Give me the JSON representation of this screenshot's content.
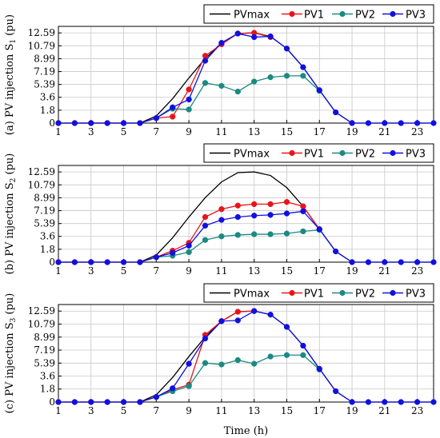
{
  "xlabel": "Time (h)",
  "chart_data": [
    {
      "type": "line",
      "ylabel_prefix": "(a) PV injection S",
      "ylabel_sub": "1",
      "ylabel_suffix": " (pu)",
      "x": [
        1,
        2,
        3,
        4,
        5,
        6,
        7,
        8,
        9,
        10,
        11,
        12,
        13,
        14,
        15,
        16,
        17,
        18,
        19,
        20,
        21,
        22,
        23,
        24
      ],
      "x_ticks": [
        1,
        3,
        5,
        7,
        9,
        11,
        13,
        15,
        17,
        19,
        21,
        23
      ],
      "y_ticks": [
        0,
        1.8,
        3.6,
        5.39,
        7.19,
        8.99,
        10.79,
        12.59
      ],
      "y_tick_labels": [
        "0",
        "1.8",
        "3.6",
        "5.39",
        "7.19",
        "8.99",
        "10.79",
        "12.59"
      ],
      "xlim": [
        1,
        24
      ],
      "ylim": [
        0,
        13.5
      ],
      "grid": true,
      "legend": "top",
      "series": [
        {
          "name": "PVmax",
          "color": "#000000",
          "marker": false,
          "values": [
            0,
            0,
            0,
            0,
            0,
            0,
            1.0,
            3.4,
            6.3,
            9.0,
            11.2,
            12.5,
            12.6,
            12.1,
            10.4,
            7.8,
            4.6,
            1.5,
            0,
            0,
            0,
            0,
            0,
            0
          ]
        },
        {
          "name": "PV1",
          "color": "#e8141a",
          "marker": true,
          "values": [
            0,
            0,
            0,
            0,
            0,
            0,
            0.7,
            0.9,
            4.7,
            9.4,
            11.0,
            12.5,
            12.6,
            12.0,
            null,
            null,
            null,
            null,
            null,
            null,
            null,
            null,
            null,
            null
          ]
        },
        {
          "name": "PV2",
          "color": "#1a8a82",
          "marker": true,
          "values": [
            null,
            null,
            null,
            null,
            null,
            null,
            0.7,
            2.0,
            1.9,
            5.6,
            5.2,
            4.4,
            5.8,
            6.4,
            6.6,
            6.6,
            4.5,
            null,
            null,
            null,
            null,
            null,
            null,
            null
          ]
        },
        {
          "name": "PV3",
          "color": "#1010e0",
          "marker": true,
          "values": [
            0,
            0,
            0,
            0,
            0,
            0,
            0.7,
            2.2,
            3.3,
            8.7,
            11.2,
            12.5,
            12.0,
            12.1,
            10.4,
            7.8,
            4.6,
            1.5,
            0,
            0,
            0,
            0,
            0,
            0
          ]
        }
      ]
    },
    {
      "type": "line",
      "ylabel_prefix": "(b) PV injection S",
      "ylabel_sub": "2",
      "ylabel_suffix": " (pu)",
      "x": [
        1,
        2,
        3,
        4,
        5,
        6,
        7,
        8,
        9,
        10,
        11,
        12,
        13,
        14,
        15,
        16,
        17,
        18,
        19,
        20,
        21,
        22,
        23,
        24
      ],
      "x_ticks": [
        1,
        3,
        5,
        7,
        9,
        11,
        13,
        15,
        17,
        19,
        21,
        23
      ],
      "y_ticks": [
        0,
        1.8,
        3.6,
        5.39,
        7.19,
        8.99,
        10.79,
        12.59
      ],
      "y_tick_labels": [
        "0",
        "1.8",
        "3.6",
        "5.39",
        "7.19",
        "8.99",
        "10.79",
        "12.59"
      ],
      "xlim": [
        1,
        24
      ],
      "ylim": [
        0,
        13.5
      ],
      "grid": true,
      "legend": "top",
      "series": [
        {
          "name": "PVmax",
          "color": "#000000",
          "marker": false,
          "values": [
            0,
            0,
            0,
            0,
            0,
            0,
            1.0,
            3.4,
            6.3,
            9.0,
            11.2,
            12.5,
            12.6,
            12.1,
            10.4,
            7.8,
            4.6,
            1.5,
            0,
            0,
            0,
            0,
            0,
            0
          ]
        },
        {
          "name": "PV1",
          "color": "#e8141a",
          "marker": true,
          "values": [
            0,
            0,
            0,
            0,
            0,
            0,
            0.7,
            1.6,
            2.7,
            6.3,
            7.4,
            7.9,
            8.1,
            8.1,
            8.4,
            7.8,
            4.6,
            null,
            null,
            null,
            null,
            null,
            null,
            null
          ]
        },
        {
          "name": "PV2",
          "color": "#1a8a82",
          "marker": true,
          "values": [
            null,
            null,
            null,
            null,
            null,
            null,
            0.7,
            0.9,
            1.4,
            3.1,
            3.6,
            3.8,
            3.9,
            3.9,
            4.0,
            4.3,
            4.5,
            null,
            null,
            null,
            null,
            null,
            null,
            null
          ]
        },
        {
          "name": "PV3",
          "color": "#1010e0",
          "marker": true,
          "values": [
            0,
            0,
            0,
            0,
            0,
            0,
            0.7,
            1.3,
            2.3,
            5.1,
            5.9,
            6.3,
            6.5,
            6.6,
            6.8,
            7.1,
            4.6,
            1.5,
            0,
            0,
            0,
            0,
            0,
            0
          ]
        }
      ]
    },
    {
      "type": "line",
      "ylabel_prefix": "(c) PV injection S",
      "ylabel_sub": "3",
      "ylabel_suffix": " (pu)",
      "x": [
        1,
        2,
        3,
        4,
        5,
        6,
        7,
        8,
        9,
        10,
        11,
        12,
        13,
        14,
        15,
        16,
        17,
        18,
        19,
        20,
        21,
        22,
        23,
        24
      ],
      "x_ticks": [
        1,
        3,
        5,
        7,
        9,
        11,
        13,
        15,
        17,
        19,
        21,
        23
      ],
      "y_ticks": [
        0,
        1.8,
        3.6,
        5.39,
        7.19,
        8.99,
        10.79,
        12.59
      ],
      "y_tick_labels": [
        "0",
        "1.8",
        "3.6",
        "5.39",
        "7.19",
        "8.99",
        "10.79",
        "12.59"
      ],
      "xlim": [
        1,
        24
      ],
      "ylim": [
        0,
        13.5
      ],
      "grid": true,
      "legend": "top",
      "series": [
        {
          "name": "PVmax",
          "color": "#000000",
          "marker": false,
          "values": [
            0,
            0,
            0,
            0,
            0,
            0,
            1.0,
            3.4,
            6.3,
            9.0,
            11.2,
            12.5,
            12.6,
            12.1,
            10.4,
            7.8,
            4.6,
            1.5,
            0,
            0,
            0,
            0,
            0,
            0
          ]
        },
        {
          "name": "PV1",
          "color": "#e8141a",
          "marker": true,
          "values": [
            0,
            0,
            0,
            0,
            0,
            0,
            0.7,
            1.7,
            2.4,
            9.3,
            11.2,
            12.5,
            12.6,
            null,
            null,
            null,
            null,
            null,
            null,
            null,
            null,
            null,
            null,
            null
          ]
        },
        {
          "name": "PV2",
          "color": "#1a8a82",
          "marker": true,
          "values": [
            null,
            null,
            null,
            null,
            null,
            null,
            0.7,
            1.5,
            2.2,
            5.4,
            5.2,
            5.8,
            5.3,
            6.3,
            6.5,
            6.5,
            4.5,
            null,
            null,
            null,
            null,
            null,
            null,
            null
          ]
        },
        {
          "name": "PV3",
          "color": "#1010e0",
          "marker": true,
          "values": [
            0,
            0,
            0,
            0,
            0,
            0,
            0.7,
            1.9,
            5.3,
            8.8,
            11.2,
            11.3,
            12.6,
            12.1,
            10.4,
            7.8,
            4.6,
            1.5,
            0,
            0,
            0,
            0,
            0,
            0
          ]
        }
      ]
    }
  ]
}
